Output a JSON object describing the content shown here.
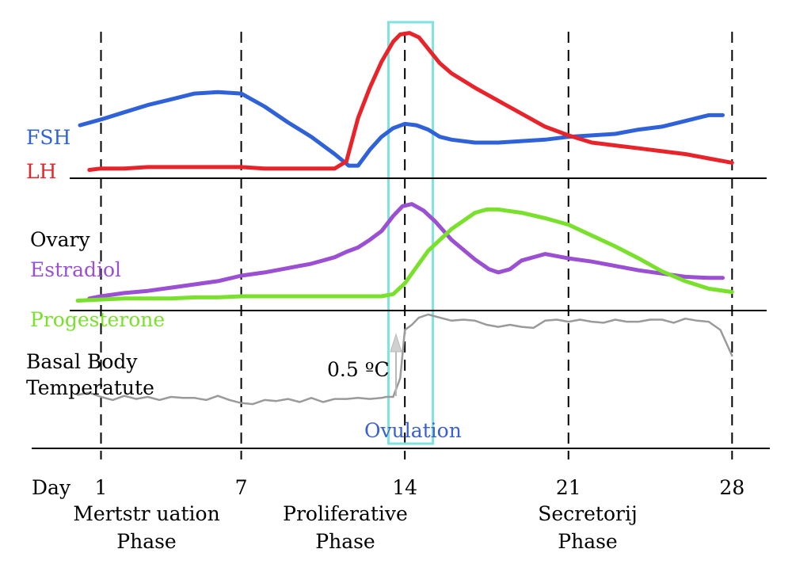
{
  "colors": {
    "fsh": "#2f62d8",
    "lh": "#e8232a",
    "estradiol": "#9b4fd2",
    "progesterone": "#79e02b",
    "bbt": "#9a9a9a",
    "ovulation_box": "#7fe3e0",
    "ovulation_text": "#3a5fd0",
    "axis": "#000000"
  },
  "labels": {
    "fsh": "FSH",
    "lh": "LH",
    "ovary": "Ovary",
    "estradiol": "Estradiol",
    "progesterone": "Progesterone",
    "bbt_line1": "Basal Body",
    "bbt_line2": "Temperatute",
    "delta_temp": "0.5 ºC",
    "ovulation": "Ovulation",
    "day": "Day"
  },
  "phases": [
    {
      "line1": "Mertstr uation",
      "line2": "Phase"
    },
    {
      "line1": "Proliferative",
      "line2": "Phase"
    },
    {
      "line1": "Secretorij",
      "line2": "Phase"
    }
  ],
  "chart_data": {
    "type": "line",
    "xlabel": "Day",
    "x_ticks": [
      1,
      7,
      14,
      21,
      28
    ],
    "xlim": [
      0,
      28.7
    ],
    "ovulation_window": [
      13.3,
      15.2
    ],
    "panels": [
      {
        "name": "pituitary",
        "series": [
          {
            "name": "FSH",
            "color_key": "fsh",
            "x": [
              0.1,
              1,
              2,
              3,
              4,
              5,
              6,
              7,
              8,
              9,
              10,
              11,
              11.6,
              12,
              12.5,
              13,
              13.5,
              14,
              14.5,
              15,
              15.5,
              16,
              17,
              18,
              19,
              20,
              21,
              22,
              23,
              24,
              25,
              26,
              27,
              27.6
            ],
            "y": [
              0.34,
              0.38,
              0.43,
              0.48,
              0.52,
              0.56,
              0.57,
              0.56,
              0.47,
              0.36,
              0.26,
              0.14,
              0.06,
              0.06,
              0.17,
              0.26,
              0.32,
              0.35,
              0.34,
              0.31,
              0.26,
              0.24,
              0.22,
              0.22,
              0.23,
              0.24,
              0.26,
              0.27,
              0.28,
              0.31,
              0.33,
              0.37,
              0.41,
              0.41
            ]
          },
          {
            "name": "LH",
            "color_key": "lh",
            "x": [
              0.5,
              1,
              2,
              3,
              4,
              5,
              6,
              7,
              8,
              9,
              10,
              11,
              11.5,
              12,
              12.5,
              13,
              13.5,
              13.8,
              14.2,
              14.6,
              15,
              15.5,
              16,
              17,
              18,
              19,
              20,
              21,
              22,
              23,
              24,
              25,
              26,
              27,
              28
            ],
            "y": [
              0.03,
              0.04,
              0.04,
              0.05,
              0.05,
              0.05,
              0.05,
              0.05,
              0.04,
              0.04,
              0.04,
              0.04,
              0.09,
              0.39,
              0.6,
              0.78,
              0.92,
              0.97,
              0.98,
              0.95,
              0.87,
              0.77,
              0.7,
              0.6,
              0.51,
              0.42,
              0.33,
              0.27,
              0.22,
              0.2,
              0.18,
              0.16,
              0.14,
              0.11,
              0.08
            ]
          }
        ]
      },
      {
        "name": "ovary",
        "series": [
          {
            "name": "Estradiol",
            "color_key": "estradiol",
            "x": [
              0.5,
              1,
              2,
              3,
              4,
              5,
              6,
              7,
              8,
              9,
              10,
              11,
              11.5,
              12,
              12.5,
              13,
              13.5,
              13.9,
              14.3,
              14.8,
              15.3,
              16,
              17,
              17.6,
              18,
              18.5,
              19,
              20,
              21,
              22,
              23,
              24,
              25,
              26,
              27,
              27.6
            ],
            "y": [
              0.06,
              0.08,
              0.11,
              0.13,
              0.16,
              0.19,
              0.22,
              0.27,
              0.3,
              0.34,
              0.38,
              0.44,
              0.49,
              0.53,
              0.6,
              0.68,
              0.82,
              0.91,
              0.93,
              0.87,
              0.77,
              0.6,
              0.42,
              0.33,
              0.3,
              0.33,
              0.41,
              0.47,
              0.43,
              0.4,
              0.36,
              0.32,
              0.29,
              0.26,
              0.25,
              0.25
            ]
          },
          {
            "name": "Progesterone",
            "color_key": "progesterone",
            "x": [
              0,
              1,
              2,
              3,
              4,
              5,
              6,
              7,
              8,
              9,
              10,
              11,
              12,
              13,
              13.5,
              14,
              14.5,
              15,
              16,
              17,
              17.5,
              18,
              19,
              20,
              21,
              22,
              23,
              24,
              25,
              26,
              27,
              28
            ],
            "y": [
              0.04,
              0.05,
              0.06,
              0.06,
              0.06,
              0.07,
              0.07,
              0.08,
              0.08,
              0.08,
              0.08,
              0.08,
              0.08,
              0.08,
              0.1,
              0.2,
              0.35,
              0.5,
              0.7,
              0.85,
              0.88,
              0.88,
              0.85,
              0.8,
              0.74,
              0.64,
              0.54,
              0.43,
              0.31,
              0.22,
              0.15,
              0.12
            ]
          }
        ]
      },
      {
        "name": "basal-body-temperature",
        "series": [
          {
            "name": "Basal Body Temperatute",
            "color_key": "bbt",
            "x": [
              0,
              0.5,
              1,
              1.5,
              2,
              2.5,
              3,
              3.5,
              4,
              4.5,
              5,
              5.5,
              6,
              6.5,
              7,
              7.5,
              8,
              8.5,
              9,
              9.5,
              10,
              10.5,
              11,
              11.5,
              12,
              12.5,
              13,
              13.2,
              13.5,
              13.8,
              14,
              14.3,
              14.6,
              15,
              15.5,
              16,
              16.5,
              17,
              17.5,
              18,
              18.5,
              19,
              19.5,
              20,
              20.5,
              21,
              21.5,
              22,
              22.5,
              23,
              23.5,
              24,
              24.5,
              25,
              25.5,
              26,
              26.5,
              27,
              27.5,
              28
            ],
            "y": [
              0.32,
              0.34,
              0.3,
              0.27,
              0.31,
              0.28,
              0.3,
              0.27,
              0.3,
              0.29,
              0.29,
              0.27,
              0.31,
              0.27,
              0.24,
              0.23,
              0.27,
              0.26,
              0.28,
              0.25,
              0.29,
              0.25,
              0.28,
              0.28,
              0.29,
              0.28,
              0.29,
              0.3,
              0.3,
              0.48,
              0.95,
              1.0,
              1.07,
              1.1,
              1.07,
              1.04,
              1.05,
              1.04,
              1.0,
              0.98,
              1.0,
              0.98,
              0.97,
              1.04,
              1.05,
              1.03,
              1.05,
              1.03,
              1.02,
              1.05,
              1.03,
              1.03,
              1.05,
              1.05,
              1.02,
              1.06,
              1.04,
              1.03,
              0.95,
              0.7
            ]
          }
        ]
      }
    ]
  }
}
